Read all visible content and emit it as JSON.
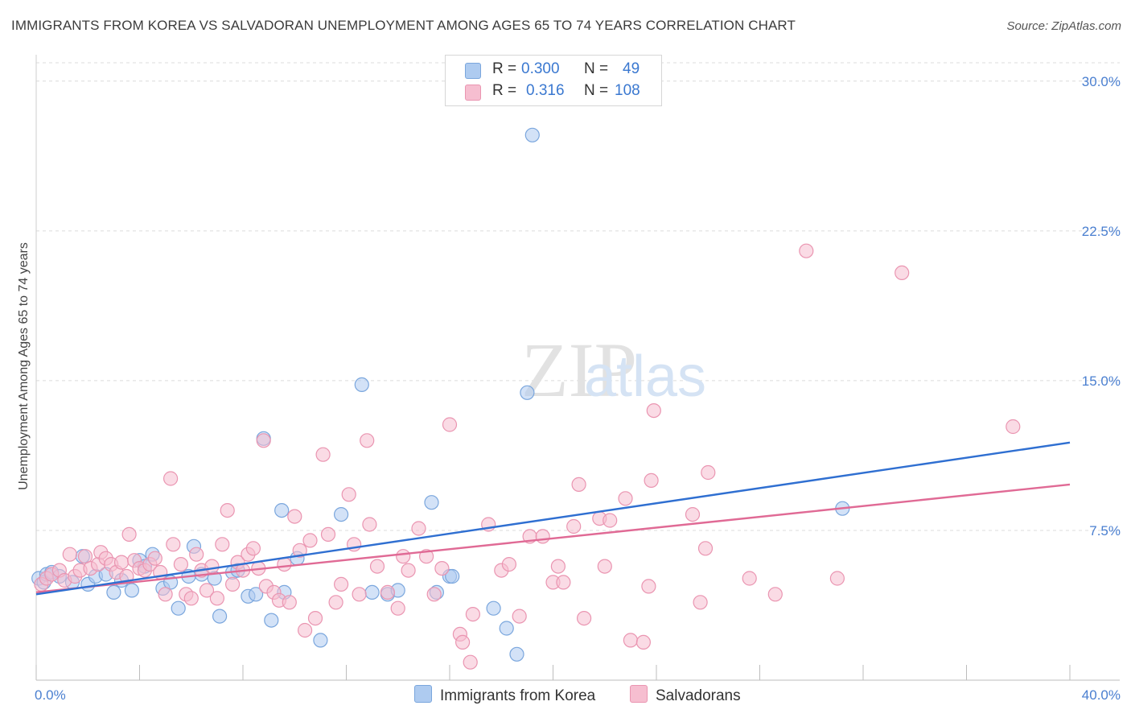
{
  "title": "IMMIGRANTS FROM KOREA VS SALVADORAN UNEMPLOYMENT AMONG AGES 65 TO 74 YEARS CORRELATION CHART",
  "source": "Source: ZipAtlas.com",
  "watermark": {
    "zip": "ZIP",
    "atlas": "atlas"
  },
  "legend": {
    "rows": [
      {
        "r_label": "R =",
        "r_value": "0.300",
        "n_label": "N =",
        "n_value": "49"
      },
      {
        "r_label": "R =",
        "r_value": "0.316",
        "n_label": "N =",
        "n_value": "108"
      }
    ]
  },
  "colors": {
    "korea_fill": "#aecbf0",
    "korea_stroke": "#7aa6dd",
    "korea_line": "#2f6fd1",
    "salv_fill": "#f6bed0",
    "salv_stroke": "#ea95b1",
    "salv_line": "#e06a95",
    "grid": "#dcdcdc",
    "tick_text": "#4a7fd0"
  },
  "chart_data": {
    "type": "scatter",
    "ylabel": "Unemployment Among Ages 65 to 74 years",
    "xlim": [
      0,
      40
    ],
    "ylim": [
      0,
      31
    ],
    "x_tick_labels": [
      {
        "value": 0,
        "label": "0.0%"
      },
      {
        "value": 40,
        "label": "40.0%"
      }
    ],
    "y_tick_labels": [
      {
        "value": 7.5,
        "label": "7.5%"
      },
      {
        "value": 15.0,
        "label": "15.0%"
      },
      {
        "value": 22.5,
        "label": "22.5%"
      },
      {
        "value": 30.0,
        "label": "30.0%"
      }
    ],
    "grid": true,
    "series": [
      {
        "name": "Immigrants from Korea",
        "trend": {
          "x": [
            0,
            40
          ],
          "y": [
            4.3,
            11.9
          ]
        },
        "points": [
          [
            0.1,
            5.1
          ],
          [
            0.3,
            4.9
          ],
          [
            0.4,
            5.3
          ],
          [
            0.6,
            5.4
          ],
          [
            0.9,
            5.2
          ],
          [
            1.4,
            4.9
          ],
          [
            1.8,
            6.2
          ],
          [
            2.0,
            4.8
          ],
          [
            2.3,
            5.2
          ],
          [
            2.7,
            5.3
          ],
          [
            3.0,
            4.4
          ],
          [
            3.3,
            5.0
          ],
          [
            3.7,
            4.5
          ],
          [
            4.0,
            6.0
          ],
          [
            4.2,
            5.7
          ],
          [
            4.5,
            6.3
          ],
          [
            4.9,
            4.6
          ],
          [
            5.2,
            4.9
          ],
          [
            5.5,
            3.6
          ],
          [
            5.9,
            5.2
          ],
          [
            6.1,
            6.7
          ],
          [
            6.4,
            5.3
          ],
          [
            6.9,
            5.1
          ],
          [
            7.1,
            3.2
          ],
          [
            7.6,
            5.4
          ],
          [
            7.8,
            5.5
          ],
          [
            8.2,
            4.2
          ],
          [
            8.5,
            4.3
          ],
          [
            8.8,
            12.1
          ],
          [
            9.1,
            3.0
          ],
          [
            9.5,
            8.5
          ],
          [
            9.6,
            4.4
          ],
          [
            10.1,
            6.1
          ],
          [
            11.0,
            2.0
          ],
          [
            11.8,
            8.3
          ],
          [
            12.6,
            14.8
          ],
          [
            13.0,
            4.4
          ],
          [
            13.6,
            4.3
          ],
          [
            14.0,
            4.5
          ],
          [
            15.3,
            8.9
          ],
          [
            15.5,
            4.4
          ],
          [
            16.0,
            5.2
          ],
          [
            16.1,
            5.2
          ],
          [
            17.7,
            3.6
          ],
          [
            18.2,
            2.6
          ],
          [
            18.6,
            1.3
          ],
          [
            19.0,
            14.4
          ],
          [
            19.2,
            27.3
          ],
          [
            31.2,
            8.6
          ]
        ]
      },
      {
        "name": "Salvadorans",
        "trend": {
          "x": [
            0,
            40
          ],
          "y": [
            4.4,
            9.8
          ]
        },
        "points": [
          [
            0.2,
            4.8
          ],
          [
            0.4,
            5.1
          ],
          [
            0.6,
            5.3
          ],
          [
            0.9,
            5.5
          ],
          [
            1.1,
            5.0
          ],
          [
            1.3,
            6.3
          ],
          [
            1.5,
            5.2
          ],
          [
            1.7,
            5.5
          ],
          [
            1.9,
            6.2
          ],
          [
            2.1,
            5.6
          ],
          [
            2.4,
            5.8
          ],
          [
            2.5,
            6.4
          ],
          [
            2.7,
            6.1
          ],
          [
            2.9,
            5.8
          ],
          [
            3.1,
            5.4
          ],
          [
            3.3,
            5.9
          ],
          [
            3.5,
            5.2
          ],
          [
            3.6,
            7.3
          ],
          [
            3.8,
            6.0
          ],
          [
            4.0,
            5.6
          ],
          [
            4.2,
            5.5
          ],
          [
            4.4,
            5.8
          ],
          [
            4.6,
            6.1
          ],
          [
            4.8,
            5.4
          ],
          [
            5.0,
            4.3
          ],
          [
            5.2,
            10.1
          ],
          [
            5.3,
            6.8
          ],
          [
            5.6,
            5.8
          ],
          [
            5.8,
            4.3
          ],
          [
            6.0,
            4.1
          ],
          [
            6.2,
            6.3
          ],
          [
            6.4,
            5.5
          ],
          [
            6.6,
            4.5
          ],
          [
            6.8,
            5.7
          ],
          [
            7.0,
            4.1
          ],
          [
            7.2,
            6.8
          ],
          [
            7.4,
            8.5
          ],
          [
            7.6,
            4.8
          ],
          [
            7.8,
            5.9
          ],
          [
            8.0,
            5.5
          ],
          [
            8.2,
            6.3
          ],
          [
            8.4,
            6.6
          ],
          [
            8.6,
            5.6
          ],
          [
            8.8,
            12.0
          ],
          [
            8.9,
            4.7
          ],
          [
            9.2,
            4.4
          ],
          [
            9.4,
            4.0
          ],
          [
            9.6,
            5.8
          ],
          [
            9.8,
            3.9
          ],
          [
            10.0,
            8.2
          ],
          [
            10.2,
            6.5
          ],
          [
            10.4,
            2.5
          ],
          [
            10.6,
            7.0
          ],
          [
            10.8,
            3.1
          ],
          [
            11.1,
            11.3
          ],
          [
            11.3,
            7.3
          ],
          [
            11.6,
            3.9
          ],
          [
            11.8,
            4.8
          ],
          [
            12.1,
            9.3
          ],
          [
            12.3,
            6.8
          ],
          [
            12.5,
            4.3
          ],
          [
            12.8,
            12.0
          ],
          [
            12.9,
            7.8
          ],
          [
            13.2,
            5.7
          ],
          [
            13.6,
            4.4
          ],
          [
            14.0,
            3.6
          ],
          [
            14.2,
            6.2
          ],
          [
            14.4,
            5.5
          ],
          [
            14.8,
            7.6
          ],
          [
            15.1,
            6.2
          ],
          [
            15.4,
            4.3
          ],
          [
            15.7,
            5.6
          ],
          [
            16.0,
            12.8
          ],
          [
            16.4,
            2.3
          ],
          [
            16.5,
            1.9
          ],
          [
            16.9,
            3.3
          ],
          [
            16.8,
            0.9
          ],
          [
            17.5,
            7.8
          ],
          [
            18.0,
            5.5
          ],
          [
            18.3,
            5.8
          ],
          [
            18.7,
            3.2
          ],
          [
            19.1,
            7.2
          ],
          [
            19.6,
            7.2
          ],
          [
            20.0,
            4.9
          ],
          [
            20.2,
            5.7
          ],
          [
            20.4,
            4.9
          ],
          [
            20.8,
            7.7
          ],
          [
            21.0,
            9.8
          ],
          [
            21.2,
            3.1
          ],
          [
            21.8,
            8.1
          ],
          [
            22.0,
            5.7
          ],
          [
            22.2,
            8.0
          ],
          [
            22.8,
            9.1
          ],
          [
            23.0,
            2.0
          ],
          [
            23.5,
            1.9
          ],
          [
            23.7,
            4.7
          ],
          [
            23.8,
            10.0
          ],
          [
            23.9,
            13.5
          ],
          [
            25.4,
            8.3
          ],
          [
            25.7,
            3.9
          ],
          [
            25.9,
            6.6
          ],
          [
            26.0,
            10.4
          ],
          [
            27.6,
            5.1
          ],
          [
            28.6,
            4.3
          ],
          [
            29.8,
            21.5
          ],
          [
            31.0,
            5.1
          ],
          [
            33.5,
            20.4
          ],
          [
            37.8,
            12.7
          ]
        ]
      }
    ]
  }
}
